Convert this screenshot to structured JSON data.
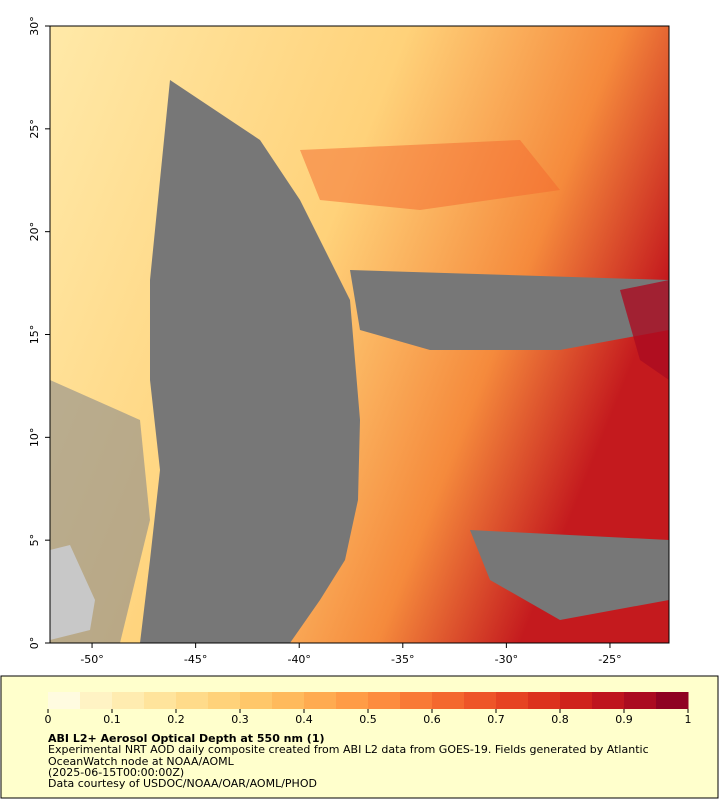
{
  "map": {
    "xlim": [
      -52.03,
      -22.15
    ],
    "ylim": [
      0,
      30
    ],
    "xticks": [
      {
        "value": -50,
        "label": "-50°"
      },
      {
        "value": -45,
        "label": "-45°"
      },
      {
        "value": -40,
        "label": "-40°"
      },
      {
        "value": -35,
        "label": "-35°"
      },
      {
        "value": -30,
        "label": "-30°"
      },
      {
        "value": -25,
        "label": "-25°"
      }
    ],
    "yticks": [
      {
        "value": 0,
        "label": "0°"
      },
      {
        "value": 5,
        "label": "5°"
      },
      {
        "value": 10,
        "label": "10°"
      },
      {
        "value": 15,
        "label": "15°"
      },
      {
        "value": 20,
        "label": "20°"
      },
      {
        "value": 25,
        "label": "25°"
      },
      {
        "value": 30,
        "label": "30°"
      }
    ]
  },
  "colorbar": {
    "range": [
      0,
      1
    ],
    "ticks": [
      0,
      0.1,
      0.2,
      0.3,
      0.4,
      0.5,
      0.6,
      0.7,
      0.8,
      0.9,
      1
    ],
    "colors": [
      "#fffbe0",
      "#fff3c4",
      "#ffecb0",
      "#ffe49c",
      "#ffdb8a",
      "#ffd27a",
      "#ffc76a",
      "#ffba5c",
      "#ffab50",
      "#ff9c46",
      "#fd8c3e",
      "#f97a36",
      "#f4682e",
      "#ee5528",
      "#e64322",
      "#dc321e",
      "#cf221c",
      "#bf151e",
      "#ab0b20",
      "#8f0222"
    ]
  },
  "caption": {
    "title": "ABI L2+ Aerosol Optical Depth at 550 nm (1)",
    "description": "Experimental NRT AOD daily composite created from ABI L2 data from GOES-19. Fields generated by Atlantic OceanWatch node at NOAA/AOML",
    "date": "(2025-06-15T00:00:00Z)",
    "credit": "Data courtesy of USDOC/NOAA/OAR/AOML/PHOD"
  }
}
